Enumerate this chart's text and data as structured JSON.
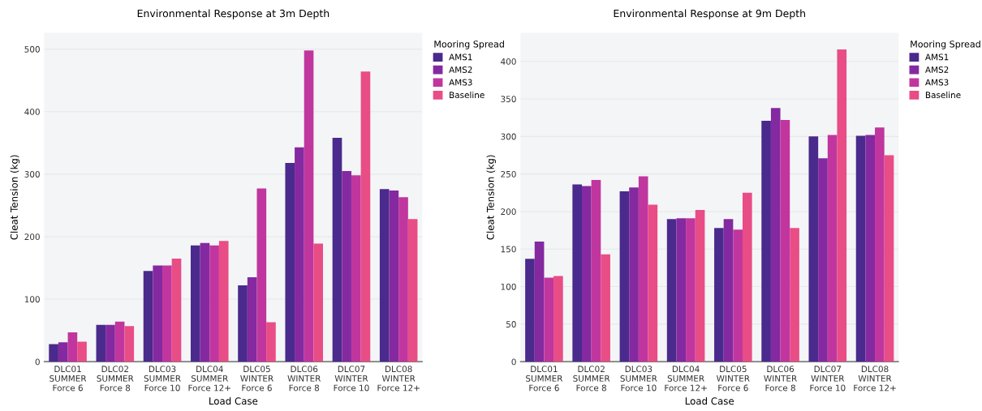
{
  "chart_data": [
    {
      "type": "bar",
      "title": "Environmental Response at 3m Depth",
      "xlabel": "Load Case",
      "ylabel": "Cleat Tension (kg)",
      "legend_title": "Mooring Spread",
      "categories": [
        "DLC01\nSUMMER\nForce 6",
        "DLC02\nSUMMER\nForce 8",
        "DLC03\nSUMMER\nForce 10",
        "DLC04\nSUMMER\nForce 12+",
        "DLC05\nWINTER\nForce 6",
        "DLC06\nWINTER\nForce 8",
        "DLC07\nWINTER\nForce 10",
        "DLC08\nWINTER\nForce 12+"
      ],
      "series": [
        {
          "name": "AMS1",
          "color": "#4a2a8c",
          "values": [
            28,
            59,
            145,
            186,
            122,
            318,
            358,
            276
          ]
        },
        {
          "name": "AMS2",
          "color": "#8429a0",
          "values": [
            31,
            59,
            154,
            190,
            135,
            343,
            305,
            274
          ]
        },
        {
          "name": "AMS3",
          "color": "#c0369e",
          "values": [
            47,
            64,
            154,
            186,
            277,
            498,
            298,
            263
          ]
        },
        {
          "name": "Baseline",
          "color": "#e84d86",
          "values": [
            32,
            57,
            165,
            193,
            63,
            189,
            464,
            228
          ]
        }
      ],
      "ylim": [
        0,
        526
      ],
      "yticks": [
        0,
        100,
        200,
        300,
        400,
        500
      ],
      "grid": "y",
      "legend": "top right"
    },
    {
      "type": "bar",
      "title": "Environmental Response at 9m Depth",
      "xlabel": "Load Case",
      "ylabel": "Cleat Tension (kg)",
      "legend_title": "Mooring Spread",
      "categories": [
        "DLC01\nSUMMER\nForce 6",
        "DLC02\nSUMMER\nForce 8",
        "DLC03\nSUMMER\nForce 10",
        "DLC04\nSUMMER\nForce 12+",
        "DLC05\nWINTER\nForce 6",
        "DLC06\nWINTER\nForce 8",
        "DLC07\nWINTER\nForce 10",
        "DLC08\nWINTER\nForce 12+"
      ],
      "series": [
        {
          "name": "AMS1",
          "color": "#4a2a8c",
          "values": [
            137,
            236,
            227,
            190,
            178,
            321,
            300,
            301
          ]
        },
        {
          "name": "AMS2",
          "color": "#8429a0",
          "values": [
            160,
            234,
            232,
            191,
            190,
            338,
            271,
            302
          ]
        },
        {
          "name": "AMS3",
          "color": "#c0369e",
          "values": [
            112,
            242,
            247,
            191,
            176,
            322,
            302,
            312
          ]
        },
        {
          "name": "Baseline",
          "color": "#e84d86",
          "values": [
            114,
            143,
            209,
            202,
            225,
            178,
            416,
            275
          ]
        }
      ],
      "ylim": [
        0,
        438
      ],
      "yticks": [
        0,
        50,
        100,
        150,
        200,
        250,
        300,
        350,
        400
      ],
      "grid": "y",
      "legend": "top right"
    }
  ]
}
